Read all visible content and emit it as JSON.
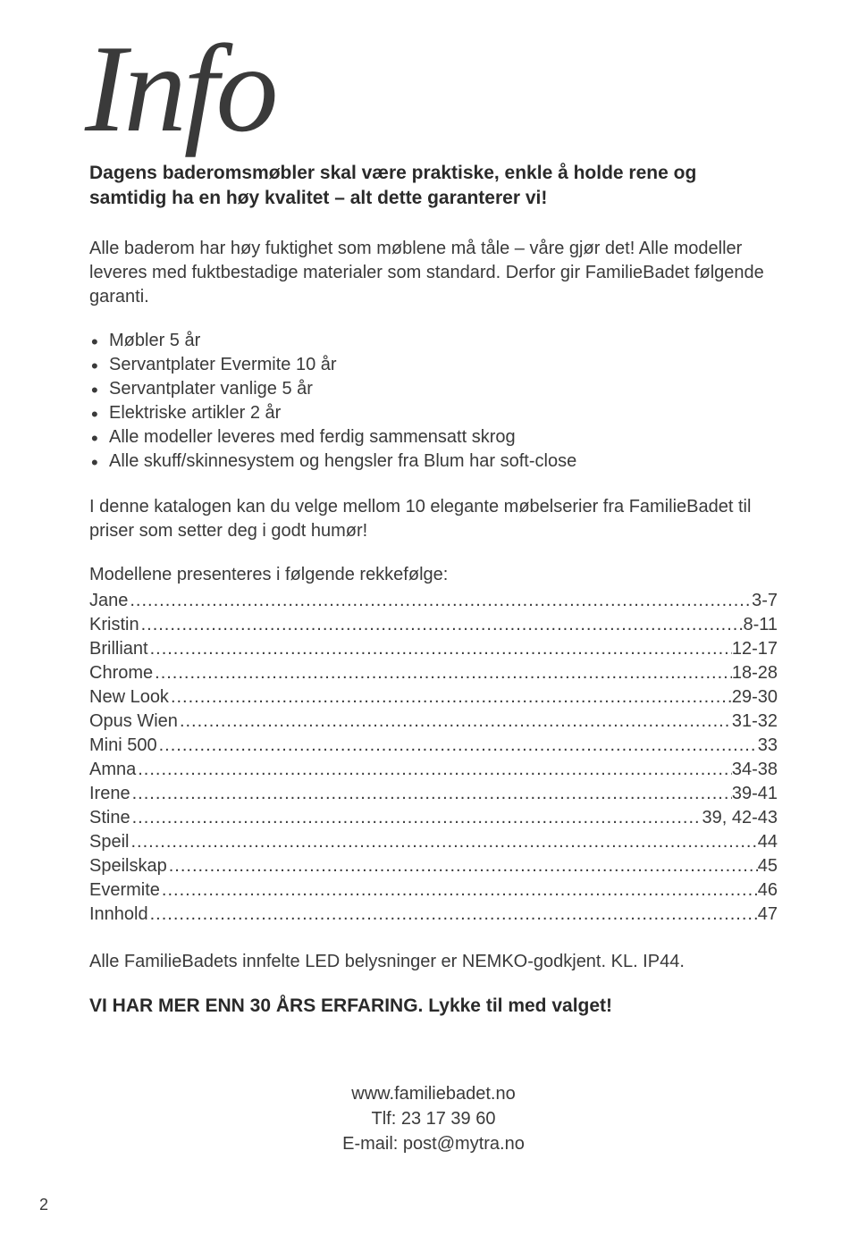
{
  "heading": "Info",
  "intro_bold": "Dagens baderomsmøbler skal være praktiske, enkle å holde rene og samtidig ha en høy kvalitet – alt dette garanterer vi!",
  "para1": "Alle baderom har høy fuktighet som møblene må tåle – våre gjør det! Alle modeller leveres med fuktbestadige materialer som standard. Derfor gir FamilieBadet følgende garanti.",
  "bullets": [
    "Møbler 5 år",
    "Servantplater Evermite 10 år",
    "Servantplater vanlige 5 år",
    "Elektriske artikler 2 år",
    "Alle modeller leveres med ferdig sammensatt skrog",
    "Alle skuff/skinnesystem og hengsler fra Blum har soft-close"
  ],
  "para2": "I denne katalogen kan du velge mellom 10 elegante møbelserier fra FamilieBadet til priser som setter deg i godt humør!",
  "toc_intro": "Modellene presenteres i følgende rekkefølge:",
  "toc": [
    {
      "name": "Jane",
      "pages": "3-7"
    },
    {
      "name": "Kristin",
      "pages": "8-11"
    },
    {
      "name": "Brilliant",
      "pages": "12-17"
    },
    {
      "name": "Chrome",
      "pages": "18-28"
    },
    {
      "name": "New Look",
      "pages": "29-30"
    },
    {
      "name": "Opus Wien",
      "pages": "31-32"
    },
    {
      "name": "Mini 500",
      "pages": "33"
    },
    {
      "name": "Amna",
      "pages": "34-38"
    },
    {
      "name": "Irene",
      "pages": "39-41"
    },
    {
      "name": "Stine",
      "pages": "39, 42-43"
    },
    {
      "name": "Speil",
      "pages": "44"
    },
    {
      "name": "Speilskap",
      "pages": "45"
    },
    {
      "name": "Evermite",
      "pages": "46"
    },
    {
      "name": "Innhold",
      "pages": "47"
    }
  ],
  "para3": "Alle FamilieBadets innfelte LED belysninger er NEMKO-godkjent. KL. IP44.",
  "closing": "VI HAR MER ENN 30 ÅRS ERFARING. Lykke til med valget!",
  "contact": {
    "web": "www.familiebadet.no",
    "phone": "Tlf: 23 17 39 60",
    "email": "E-mail: post@mytra.no"
  },
  "page_number": "2",
  "colors": {
    "text": "#3a3a3a",
    "bold_text": "#2a2a2a",
    "background": "#ffffff"
  },
  "typography": {
    "body_fontsize": 20,
    "bold_fontsize": 21,
    "heading_fontsize": 140,
    "body_font": "Arial",
    "heading_font": "Brush Script"
  }
}
